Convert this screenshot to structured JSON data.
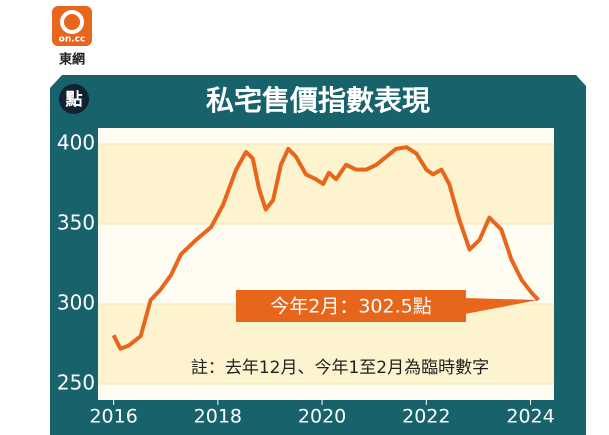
{
  "chart_data": {
    "type": "line",
    "title": "私宅售價指數表現",
    "logo": "on.cc",
    "brand": "東網",
    "unit": "點",
    "annotation": "今年2月：302.5點",
    "note": "註：去年12月、今年1至2月為臨時數字",
    "x": [
      2016.0,
      2016.13,
      2016.29,
      2016.52,
      2016.71,
      2016.9,
      2017.1,
      2017.29,
      2017.58,
      2017.87,
      2018.1,
      2018.35,
      2018.54,
      2018.67,
      2018.79,
      2018.92,
      2019.06,
      2019.21,
      2019.35,
      2019.5,
      2019.69,
      2019.88,
      2020.02,
      2020.13,
      2020.27,
      2020.46,
      2020.65,
      2020.85,
      2021.04,
      2021.23,
      2021.42,
      2021.62,
      2021.81,
      2022.0,
      2022.13,
      2022.29,
      2022.44,
      2022.63,
      2022.83,
      2023.02,
      2023.21,
      2023.44,
      2023.63,
      2023.83,
      2024.02,
      2024.15
    ],
    "values": [
      280.5,
      272,
      274,
      280,
      302.5,
      309,
      318,
      331,
      340,
      348,
      362,
      384,
      395,
      391,
      372,
      359,
      365,
      387,
      397,
      392,
      381,
      378,
      375,
      382,
      378,
      387,
      384,
      384,
      387,
      392,
      397,
      398,
      394,
      384,
      381,
      384,
      375,
      353,
      334,
      340,
      354,
      346.5,
      328,
      315,
      307,
      302.5
    ],
    "color": "#e8661c",
    "xlim": [
      2015.7,
      2024.45
    ],
    "xticks": [
      2016,
      2018,
      2020,
      2022,
      2024
    ],
    "ylim": [
      240,
      410
    ],
    "yticks": [
      250,
      300,
      350,
      400
    ]
  }
}
